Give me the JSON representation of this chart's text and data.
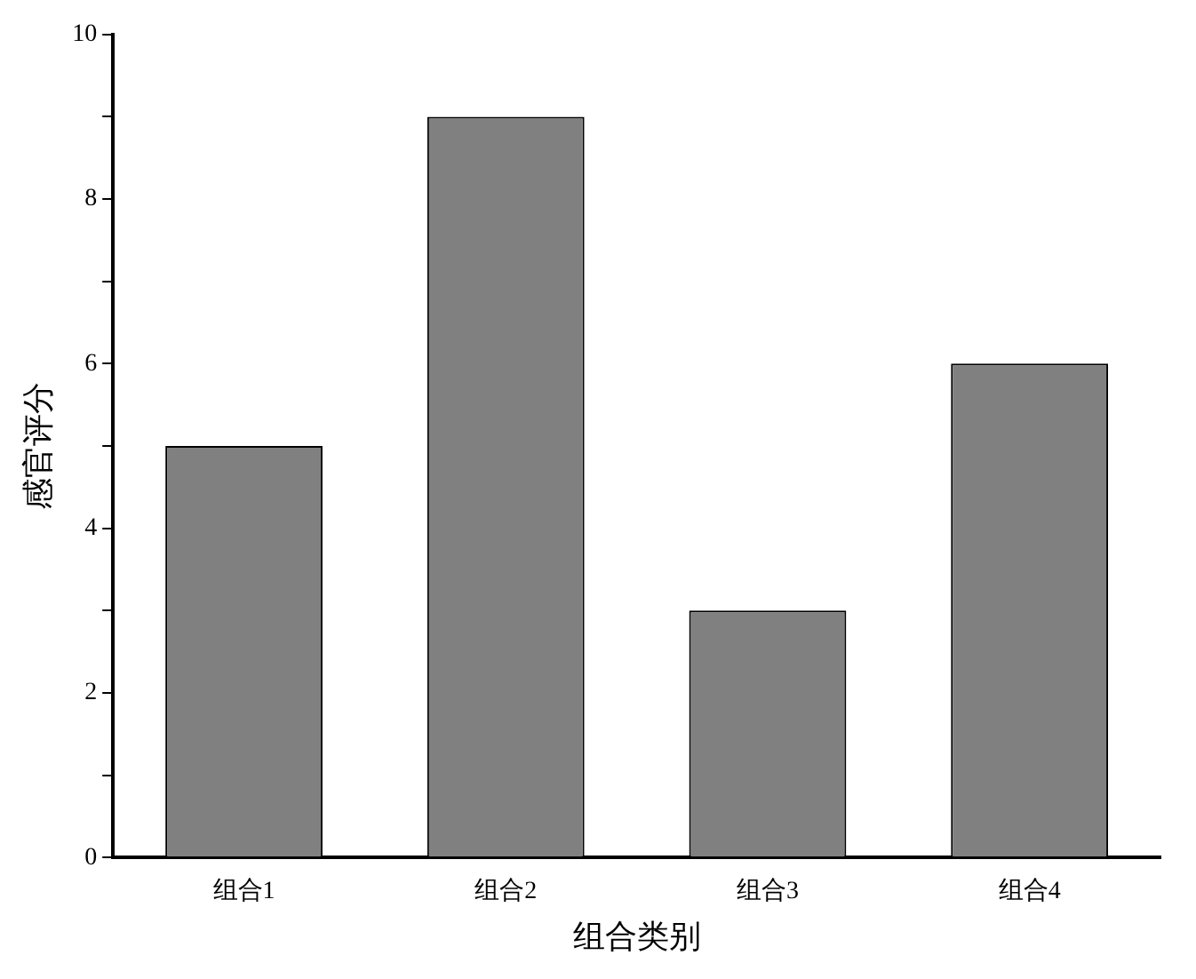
{
  "chart_data": {
    "type": "bar",
    "xlabel": "组合类别",
    "ylabel": "感官评分",
    "categories": [
      "组合1",
      "组合2",
      "组合3",
      "组合4"
    ],
    "values": [
      5,
      9,
      3,
      6
    ],
    "color": "#808080",
    "ylim": [
      0,
      10
    ],
    "yticks": [
      0,
      {
        "value": 1,
        "label": null
      },
      2,
      {
        "value": 3,
        "label": null
      },
      4,
      {
        "value": 5,
        "label": null
      },
      6,
      {
        "value": 7,
        "label": null
      },
      8,
      {
        "value": 9,
        "label": null
      },
      10
    ],
    "grid": false,
    "legend": false
  }
}
